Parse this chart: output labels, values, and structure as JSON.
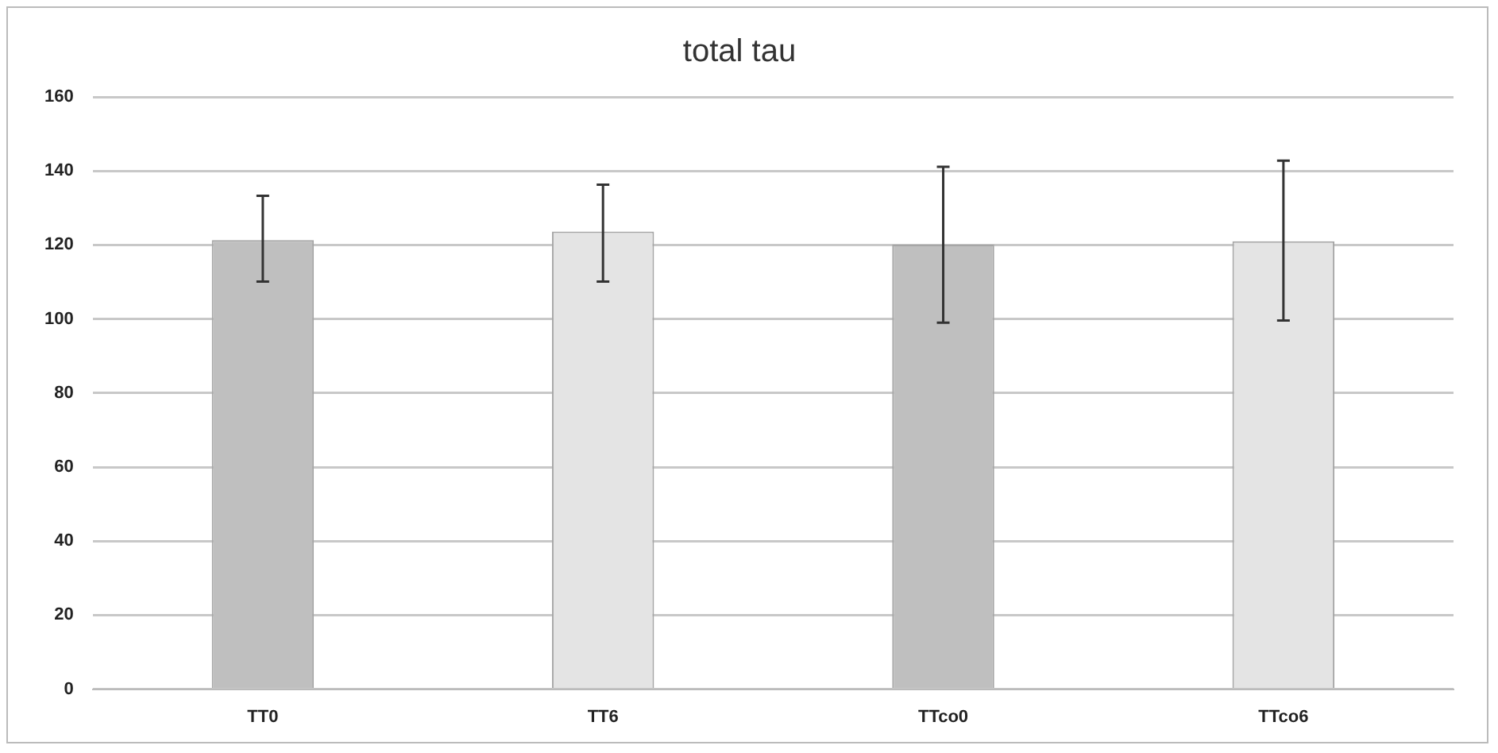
{
  "chart_data": {
    "type": "bar",
    "title": "total tau",
    "categories": [
      "TT0",
      "TT6",
      "TTco0",
      "TTco6"
    ],
    "values": [
      121.3,
      123.6,
      120.1,
      121
    ],
    "colors": [
      "#bfbfbf",
      "#e4e4e4",
      "#bfbfbf",
      "#e4e4e4"
    ],
    "errors": [
      [
        110.1,
        133.3
      ],
      [
        110.1,
        136.3
      ],
      [
        99,
        141.1
      ],
      [
        99.6,
        142.8
      ]
    ],
    "ylim": [
      0,
      160
    ],
    "yticks": [
      0,
      20,
      40,
      60,
      80,
      100,
      120,
      140,
      160
    ],
    "grid": "y",
    "legend": false
  }
}
